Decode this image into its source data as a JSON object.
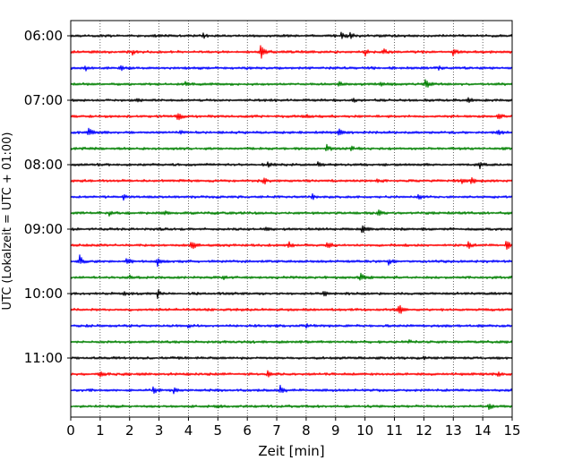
{
  "chart_data": {
    "type": "line",
    "title": "",
    "xlabel": "Zeit  [min]",
    "ylabel": "UTC (Lokalzeit = UTC + 01:00)",
    "xlim": [
      0,
      15
    ],
    "x_ticks": [
      "0",
      "1",
      "2",
      "3",
      "4",
      "5",
      "6",
      "7",
      "8",
      "9",
      "10",
      "11",
      "12",
      "13",
      "14",
      "15"
    ],
    "y_ticks": [
      "06:00",
      "07:00",
      "08:00",
      "09:00",
      "10:00",
      "11:00"
    ],
    "grid": "vertical dotted lines at each minute",
    "legend": "none",
    "trace_interval_min": 15,
    "trace_colors": [
      "#000000",
      "#ff0000",
      "#0000ff",
      "#008000"
    ],
    "traces": [
      {
        "start": "06:00",
        "color": "#000000",
        "events": [
          [
            9.2,
            0.55
          ],
          [
            9.5,
            0.4
          ],
          [
            4.5,
            0.2
          ]
        ]
      },
      {
        "start": "06:15",
        "color": "#ff0000",
        "events": [
          [
            2.1,
            0.35
          ],
          [
            6.45,
            0.9
          ],
          [
            10.0,
            0.45
          ],
          [
            10.6,
            0.45
          ],
          [
            13.0,
            0.55
          ]
        ]
      },
      {
        "start": "06:30",
        "color": "#0000ff",
        "events": [
          [
            1.7,
            0.45
          ],
          [
            0.5,
            0.25
          ],
          [
            6.0,
            0.2
          ],
          [
            12.5,
            0.2
          ]
        ]
      },
      {
        "start": "06:45",
        "color": "#008000",
        "events": [
          [
            3.9,
            0.3
          ],
          [
            9.1,
            0.35
          ],
          [
            12.05,
            0.75
          ],
          [
            10.5,
            0.25
          ]
        ]
      },
      {
        "start": "07:00",
        "color": "#000000",
        "events": [
          [
            2.2,
            0.2
          ],
          [
            9.6,
            0.25
          ],
          [
            13.5,
            0.35
          ]
        ]
      },
      {
        "start": "07:15",
        "color": "#ff0000",
        "events": [
          [
            3.6,
            0.75
          ],
          [
            8.0,
            0.2
          ],
          [
            14.5,
            0.55
          ]
        ]
      },
      {
        "start": "07:30",
        "color": "#0000ff",
        "events": [
          [
            0.6,
            0.65
          ],
          [
            3.7,
            0.35
          ],
          [
            9.1,
            0.55
          ],
          [
            14.5,
            0.45
          ]
        ]
      },
      {
        "start": "07:45",
        "color": "#008000",
        "events": [
          [
            8.7,
            0.4
          ],
          [
            9.5,
            0.25
          ]
        ]
      },
      {
        "start": "08:00",
        "color": "#000000",
        "events": [
          [
            6.7,
            0.3
          ],
          [
            8.4,
            0.25
          ],
          [
            13.9,
            0.4
          ]
        ]
      },
      {
        "start": "08:15",
        "color": "#ff0000",
        "events": [
          [
            6.55,
            0.45
          ],
          [
            10.4,
            0.25
          ],
          [
            13.3,
            0.45
          ],
          [
            13.6,
            0.4
          ]
        ]
      },
      {
        "start": "08:30",
        "color": "#0000ff",
        "events": [
          [
            1.8,
            0.3
          ],
          [
            8.2,
            0.4
          ],
          [
            11.8,
            0.3
          ]
        ]
      },
      {
        "start": "08:45",
        "color": "#008000",
        "events": [
          [
            1.3,
            0.3
          ],
          [
            3.2,
            0.3
          ],
          [
            10.45,
            0.45
          ]
        ]
      },
      {
        "start": "09:00",
        "color": "#000000",
        "events": [
          [
            9.9,
            0.7
          ],
          [
            6.6,
            0.25
          ]
        ]
      },
      {
        "start": "09:15",
        "color": "#ff0000",
        "events": [
          [
            4.1,
            0.7
          ],
          [
            7.4,
            0.55
          ],
          [
            8.7,
            0.55
          ],
          [
            14.8,
            0.75
          ],
          [
            13.5,
            0.45
          ]
        ]
      },
      {
        "start": "09:30",
        "color": "#0000ff",
        "events": [
          [
            0.3,
            0.7
          ],
          [
            1.9,
            0.7
          ],
          [
            2.95,
            0.55
          ],
          [
            10.8,
            0.45
          ]
        ]
      },
      {
        "start": "09:45",
        "color": "#008000",
        "events": [
          [
            9.85,
            0.7
          ],
          [
            2.0,
            0.25
          ],
          [
            5.2,
            0.2
          ]
        ]
      },
      {
        "start": "10:00",
        "color": "#000000",
        "events": [
          [
            2.95,
            0.5
          ],
          [
            8.6,
            0.3
          ],
          [
            1.8,
            0.25
          ]
        ]
      },
      {
        "start": "10:15",
        "color": "#ff0000",
        "events": [
          [
            11.15,
            0.8
          ]
        ]
      },
      {
        "start": "10:30",
        "color": "#0000ff",
        "events": [
          [
            4.0,
            0.25
          ],
          [
            8.0,
            0.2
          ]
        ]
      },
      {
        "start": "10:45",
        "color": "#008000",
        "events": [
          [
            11.5,
            0.2
          ]
        ]
      },
      {
        "start": "11:00",
        "color": "#000000",
        "events": [
          [
            12.0,
            0.2
          ]
        ]
      },
      {
        "start": "11:15",
        "color": "#ff0000",
        "events": [
          [
            1.0,
            0.45
          ],
          [
            6.7,
            0.45
          ],
          [
            14.5,
            0.25
          ]
        ]
      },
      {
        "start": "11:30",
        "color": "#0000ff",
        "events": [
          [
            2.8,
            0.45
          ],
          [
            7.1,
            0.65
          ],
          [
            3.5,
            0.35
          ]
        ]
      },
      {
        "start": "11:45",
        "color": "#008000",
        "events": [
          [
            14.2,
            0.45
          ],
          [
            4.9,
            0.25
          ]
        ]
      }
    ]
  }
}
